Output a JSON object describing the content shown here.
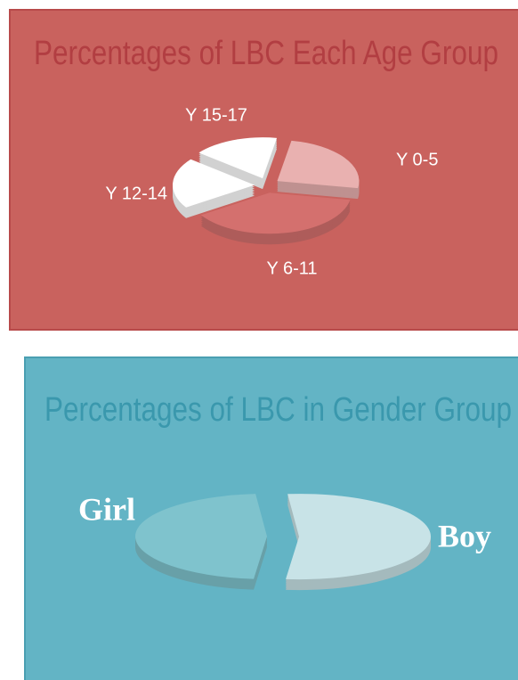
{
  "chart_data": [
    {
      "type": "pie",
      "title": "Percentages of LBC Each Age Group",
      "categories": [
        "Y 0-5",
        "Y 6-11",
        "Y 12-14",
        "Y 15-17"
      ],
      "values": [
        25,
        38,
        20,
        17
      ],
      "colors": [
        "#e9b1b0",
        "#d4706e",
        "#ffffff",
        "#ffffff"
      ]
    },
    {
      "type": "pie",
      "title": "Percentages of LBC in Gender Group",
      "categories": [
        "Boy",
        "Girl"
      ],
      "values": [
        53,
        47
      ],
      "colors": [
        "#c8e3e7",
        "#7fc3cd"
      ]
    }
  ]
}
